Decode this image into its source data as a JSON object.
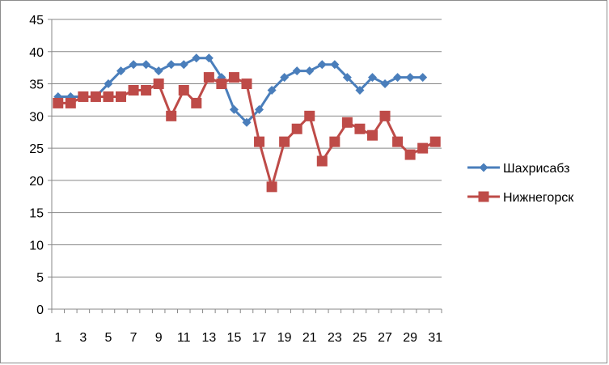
{
  "chart_data": {
    "type": "line",
    "title": "",
    "xlabel": "",
    "ylabel": "",
    "ylim": [
      0,
      45
    ],
    "y_ticks": [
      0,
      5,
      10,
      15,
      20,
      25,
      30,
      35,
      40,
      45
    ],
    "x_ticks": [
      1,
      3,
      5,
      7,
      9,
      11,
      13,
      15,
      17,
      19,
      21,
      23,
      25,
      27,
      29,
      31
    ],
    "x": [
      1,
      2,
      3,
      4,
      5,
      6,
      7,
      8,
      9,
      10,
      11,
      12,
      13,
      14,
      15,
      16,
      17,
      18,
      19,
      20,
      21,
      22,
      23,
      24,
      25,
      26,
      27,
      28,
      29,
      30,
      31
    ],
    "grid": "horizontal",
    "legend_position": "right",
    "series": [
      {
        "name": "Шахрисабз",
        "color": "#4a7ebb",
        "marker": "diamond",
        "values": [
          33,
          33,
          33,
          33,
          35,
          37,
          38,
          38,
          37,
          38,
          38,
          39,
          39,
          36,
          31,
          29,
          31,
          34,
          36,
          37,
          37,
          38,
          38,
          36,
          34,
          36,
          35,
          36,
          36,
          36,
          null
        ]
      },
      {
        "name": "Нижнегорск",
        "color": "#be4b48",
        "marker": "square",
        "values": [
          32,
          32,
          33,
          33,
          33,
          33,
          34,
          34,
          35,
          30,
          34,
          32,
          36,
          35,
          36,
          35,
          26,
          19,
          26,
          28,
          30,
          23,
          26,
          29,
          28,
          27,
          30,
          26,
          24,
          25,
          26
        ]
      }
    ]
  }
}
